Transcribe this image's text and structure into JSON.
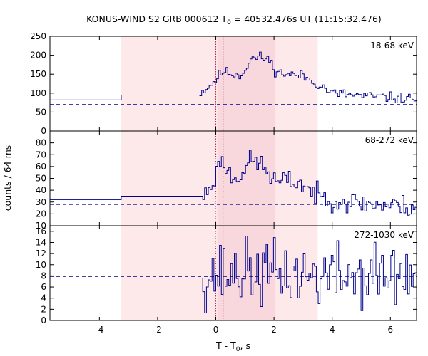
{
  "chart_data": {
    "type": "step-lightcurve",
    "title_prefix": "KONUS-WIND S2 GRB 000612 T",
    "title_sub": "0",
    "title_suffix": " = 40532.476s UT (11:15:32.476)",
    "xlabel_prefix": "T - T",
    "xlabel_sub": "0",
    "xlabel_suffix": ", s",
    "ylabel": "counts / 64 ms",
    "xlim": [
      -5.7,
      6.9
    ],
    "x_ticks": [
      -4,
      -2,
      0,
      2,
      4,
      6
    ],
    "x_tick_labels": [
      "-4",
      "-2",
      "0",
      "2",
      "4",
      "6"
    ],
    "shaded_intervals": [
      {
        "x0": -3.25,
        "x1": 3.5,
        "color": "#fde9ea"
      },
      {
        "x0": 0.05,
        "x1": 2.05,
        "color": "#f8d8dc"
      }
    ],
    "dotted_lines": [
      0.0,
      0.25
    ],
    "line_color": "#00008b",
    "panels": [
      {
        "label": "18-68 keV",
        "ylim": [
          0,
          250
        ],
        "y_ticks": [
          0,
          50,
          100,
          150,
          200,
          250
        ],
        "y_tick_labels": [
          "0",
          "50",
          "100",
          "150",
          "200",
          "250"
        ],
        "background": 70,
        "pre_x": [
          -5.7,
          -3.25,
          -0.55
        ],
        "pre_y": [
          82,
          95
        ],
        "bin": 0.064,
        "seed": 11,
        "noise": 7,
        "curve": [
          [
            -0.55,
            100
          ],
          [
            -0.2,
            120
          ],
          [
            0.0,
            135
          ],
          [
            0.25,
            158
          ],
          [
            0.5,
            152
          ],
          [
            0.9,
            148
          ],
          [
            1.2,
            190
          ],
          [
            1.5,
            195
          ],
          [
            1.8,
            190
          ],
          [
            2.1,
            155
          ],
          [
            2.5,
            150
          ],
          [
            3.0,
            145
          ],
          [
            3.5,
            125
          ],
          [
            4.0,
            100
          ],
          [
            5.0,
            93
          ],
          [
            6.0,
            88
          ],
          [
            6.9,
            85
          ]
        ]
      },
      {
        "label": "68-272 keV",
        "ylim": [
          10,
          90
        ],
        "y_ticks": [
          10,
          20,
          30,
          40,
          50,
          60,
          70,
          80
        ],
        "y_tick_labels": [
          "10",
          "20",
          "30",
          "40",
          "50",
          "60",
          "70",
          "80"
        ],
        "background": 28,
        "pre_x": [
          -5.7,
          -3.25,
          -0.45
        ],
        "pre_y": [
          32,
          35
        ],
        "bin": 0.064,
        "seed": 23,
        "noise": 4.5,
        "curve": [
          [
            -0.45,
            34
          ],
          [
            -0.2,
            42
          ],
          [
            0.05,
            55
          ],
          [
            0.15,
            68
          ],
          [
            0.3,
            60
          ],
          [
            0.6,
            50
          ],
          [
            0.9,
            55
          ],
          [
            1.2,
            65
          ],
          [
            1.5,
            63
          ],
          [
            1.8,
            55
          ],
          [
            2.1,
            46
          ],
          [
            2.5,
            48
          ],
          [
            3.0,
            45
          ],
          [
            3.5,
            35
          ],
          [
            4.5,
            30
          ],
          [
            5.5,
            28
          ],
          [
            6.9,
            26
          ]
        ]
      },
      {
        "label": "272-1030 keV",
        "ylim": [
          0,
          17
        ],
        "y_ticks": [
          0,
          2,
          4,
          6,
          8,
          10,
          12,
          14,
          16
        ],
        "y_tick_labels": [
          "0",
          "2",
          "4",
          "6",
          "8",
          "10",
          "12",
          "14",
          "16"
        ],
        "background": 7.9,
        "pre_x": [
          -5.7,
          -0.45
        ],
        "pre_y": [
          7.6
        ],
        "bin": 0.064,
        "seed": 37,
        "noise": 2.9,
        "curve": [
          [
            -0.45,
            7.8
          ],
          [
            0.0,
            8.3
          ],
          [
            1.0,
            8.6
          ],
          [
            2.0,
            8.4
          ],
          [
            3.0,
            8.1
          ],
          [
            4.5,
            8.0
          ],
          [
            6.9,
            8.0
          ]
        ]
      }
    ]
  }
}
